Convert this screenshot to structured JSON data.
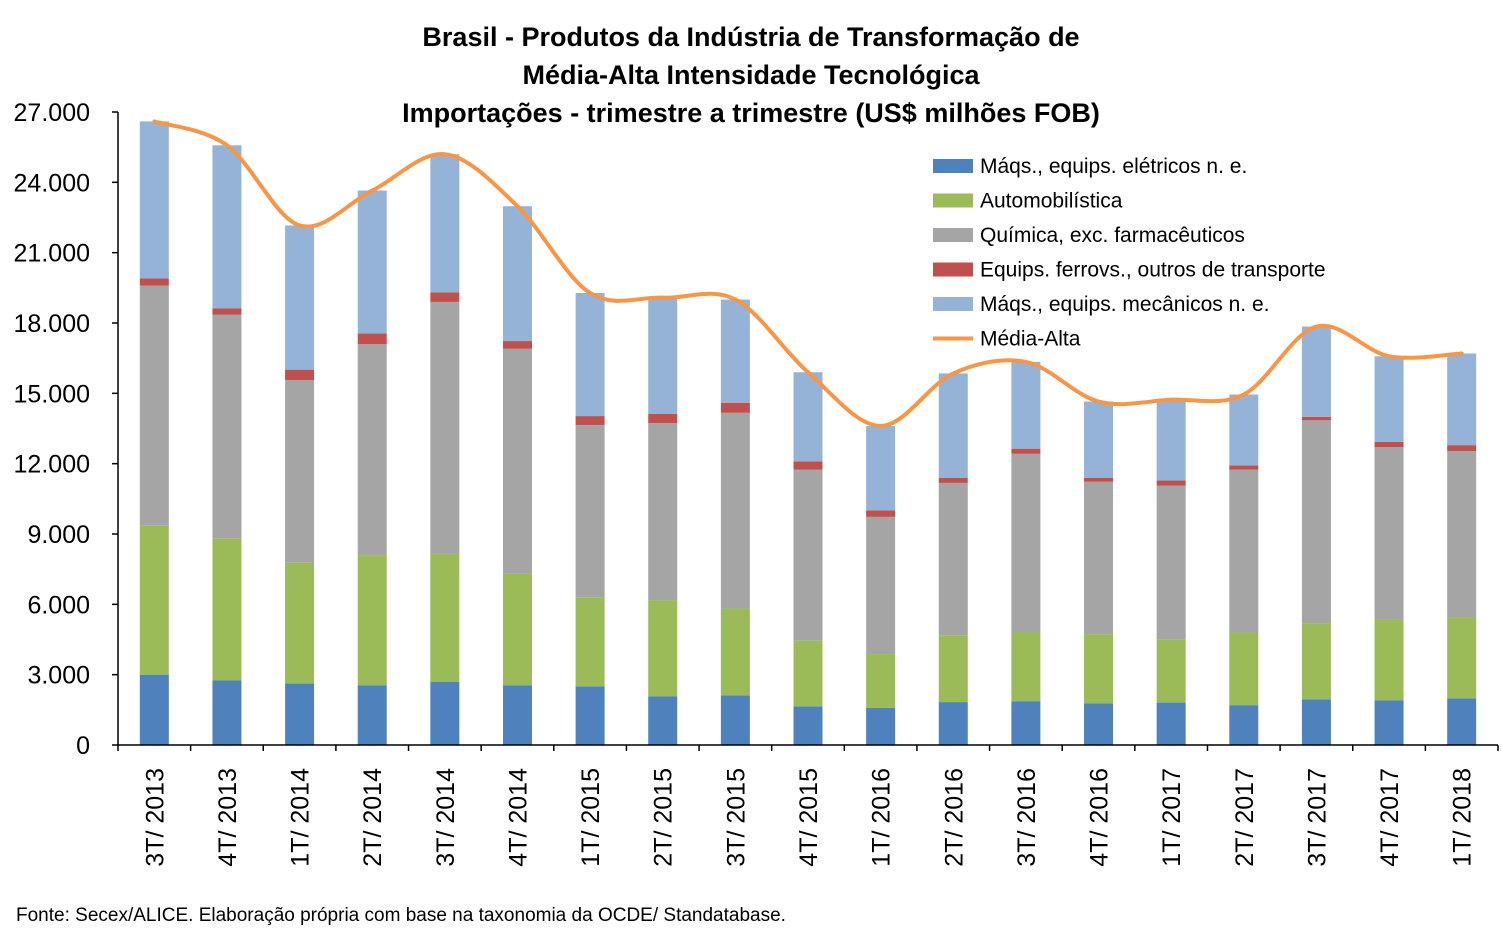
{
  "chart_data": {
    "type": "bar",
    "stacked": true,
    "title_lines": [
      "Brasil - Produtos da Indústria de Transformação de",
      "Média-Alta Intensidade Tecnológica",
      "Importações - trimestre a trimestre (US$ milhões FOB)"
    ],
    "categories": [
      "3T/ 2013",
      "4T/ 2013",
      "1T/ 2014",
      "2T/ 2014",
      "3T/ 2014",
      "4T/ 2014",
      "1T/ 2015",
      "2T/ 2015",
      "3T/ 2015",
      "4T/ 2015",
      "1T/ 2016",
      "2T/ 2016",
      "3T/ 2016",
      "4T/ 2016",
      "1T/ 2017",
      "2T/ 2017",
      "3T/ 2017",
      "4T/ 2017",
      "1T/ 2018"
    ],
    "y_ticks": [
      "0",
      "3.000",
      "6.000",
      "9.000",
      "12.000",
      "15.000",
      "18.000",
      "21.000",
      "24.000",
      "27.000"
    ],
    "ylim": [
      0,
      27000
    ],
    "series": [
      {
        "name": "Máqs., equips. elétricos n. e.",
        "color": "#4f81bd",
        "values": [
          3000,
          2750,
          2620,
          2550,
          2700,
          2550,
          2500,
          2080,
          2120,
          1650,
          1580,
          1830,
          1870,
          1780,
          1810,
          1700,
          1950,
          1900,
          1990
        ]
      },
      {
        "name": "Automobilística",
        "color": "#9bbb59",
        "values": [
          6350,
          6050,
          5150,
          5550,
          5450,
          4750,
          3800,
          4100,
          3700,
          2800,
          2300,
          2850,
          2950,
          2950,
          2700,
          3100,
          3250,
          3450,
          3450
        ]
      },
      {
        "name": "Química, exc. farmacêuticos",
        "color": "#a5a5a5",
        "values": [
          10250,
          9550,
          7800,
          9000,
          10750,
          9600,
          7350,
          7550,
          8350,
          7300,
          5850,
          6500,
          7600,
          6500,
          6550,
          6950,
          8650,
          7350,
          7100
        ]
      },
      {
        "name": "Equips. ferrovs., outros de transporte",
        "color": "#c0504d",
        "values": [
          300,
          280,
          440,
          450,
          400,
          330,
          380,
          400,
          430,
          350,
          280,
          220,
          220,
          170,
          220,
          170,
          150,
          230,
          250
        ]
      },
      {
        "name": "Máqs., equips. mecânicos  n. e.",
        "color": "#95b3d7",
        "values": [
          6700,
          6950,
          6150,
          6100,
          5900,
          5750,
          5250,
          4950,
          4400,
          3800,
          3600,
          4450,
          3700,
          3250,
          3450,
          3030,
          3850,
          3650,
          3910
        ]
      }
    ],
    "line": {
      "name": "Média-Alta",
      "color": "#f79646",
      "values": [
        26600,
        25580,
        22160,
        23650,
        25200,
        22980,
        19280,
        19080,
        19000,
        15900,
        13610,
        15850,
        16340,
        14650,
        14730,
        14950,
        17850,
        16580,
        16700
      ]
    },
    "legend_position": "top-right",
    "grid": false,
    "source_note": "Fonte: Secex/ALICE. Elaboração própria com base na taxonomia da OCDE/ Standatabase."
  }
}
